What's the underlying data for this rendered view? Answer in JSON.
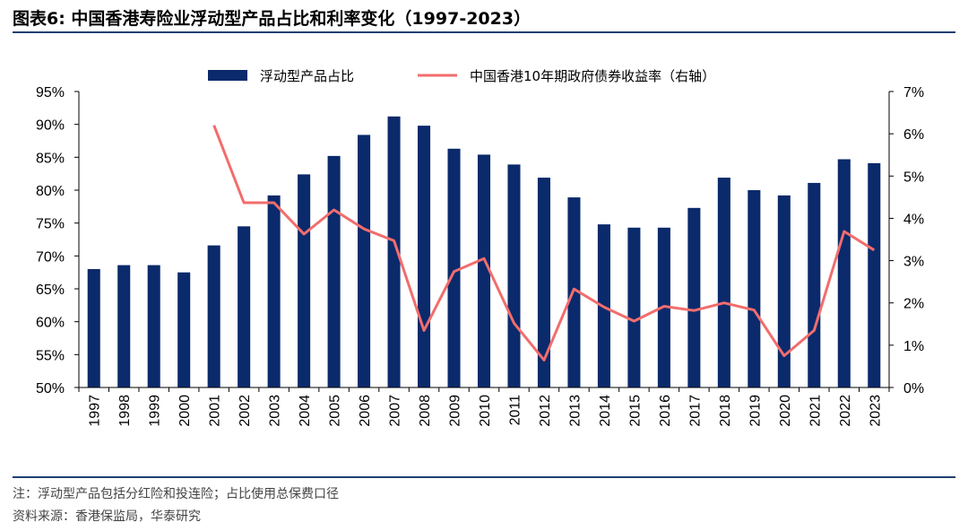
{
  "figure": {
    "title": "图表6:  中国香港寿险业浮动型产品占比和利率变化（1997-2023）",
    "note": "注：浮动型产品包括分红险和投连险；占比使用总保费口径",
    "source": "资料来源：香港保监局，华泰研究"
  },
  "colors": {
    "bar": "#0b2a6b",
    "line": "#f26d6d",
    "rule": "#1f3f73"
  },
  "chart_data": {
    "type": "bar",
    "categories": [
      "1997",
      "1998",
      "1999",
      "2000",
      "2001",
      "2002",
      "2003",
      "2004",
      "2005",
      "2006",
      "2007",
      "2008",
      "2009",
      "2010",
      "2011",
      "2012",
      "2013",
      "2014",
      "2015",
      "2016",
      "2017",
      "2018",
      "2019",
      "2020",
      "2021",
      "2022",
      "2023"
    ],
    "series": [
      {
        "name": "浮动型产品占比",
        "type": "bar",
        "axis": "left",
        "values": [
          68.0,
          68.6,
          68.6,
          67.5,
          71.6,
          74.5,
          79.2,
          82.4,
          85.2,
          88.4,
          91.2,
          89.8,
          86.3,
          85.4,
          83.9,
          81.9,
          78.9,
          74.8,
          74.3,
          74.3,
          77.3,
          81.9,
          80.0,
          79.2,
          81.1,
          84.7,
          84.1
        ]
      },
      {
        "name": "中国香港10年期政府债券收益率（右轴）",
        "type": "line",
        "axis": "right",
        "values": [
          null,
          null,
          null,
          null,
          6.2,
          4.37,
          4.37,
          3.63,
          4.2,
          3.75,
          3.47,
          1.35,
          2.74,
          3.05,
          1.52,
          0.65,
          2.33,
          1.9,
          1.57,
          1.92,
          1.82,
          2.0,
          1.83,
          0.75,
          1.35,
          3.69,
          3.25
        ]
      }
    ],
    "y_left": {
      "min": 50,
      "max": 95,
      "step": 5,
      "tick_labels": [
        "50%",
        "55%",
        "60%",
        "65%",
        "70%",
        "75%",
        "80%",
        "85%",
        "90%",
        "95%"
      ]
    },
    "y_right": {
      "min": 0,
      "max": 7,
      "step": 1,
      "tick_labels": [
        "0%",
        "1%",
        "2%",
        "3%",
        "4%",
        "5%",
        "6%",
        "7%"
      ]
    },
    "legend": {
      "position": "top-center"
    },
    "grid": false
  }
}
